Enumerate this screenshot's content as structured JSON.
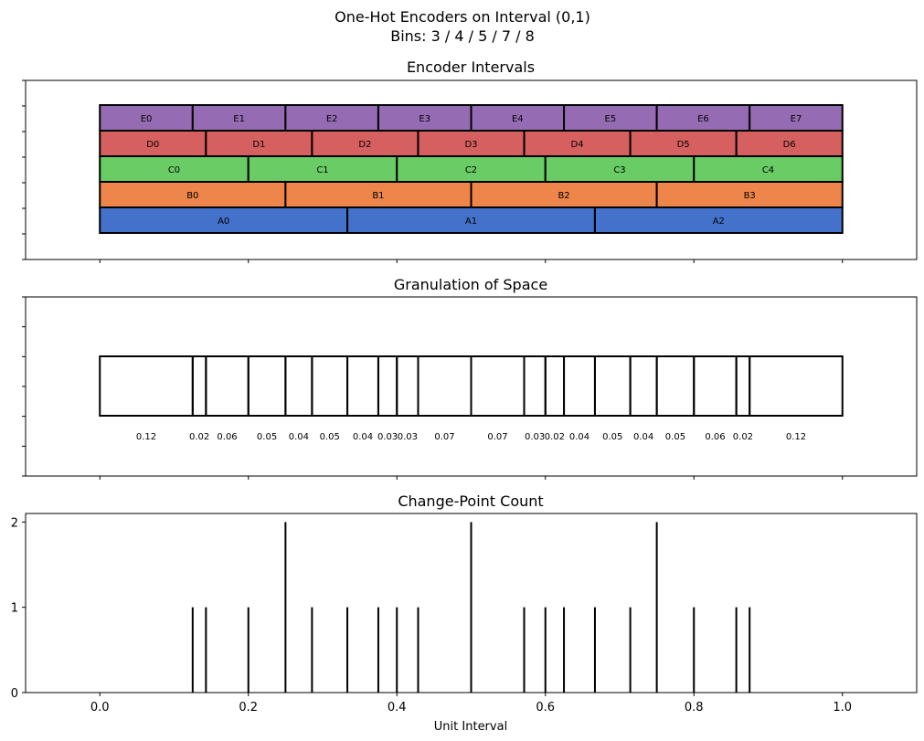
{
  "figure": {
    "suptitle_line1": "One-Hot Encoders on Interval (0,1)",
    "suptitle_line2": "Bins: 3 / 4 / 5 / 7 / 8"
  },
  "colors": {
    "A": "#4472ca",
    "B": "#ee854a",
    "C": "#6acc64",
    "D": "#d65f5f",
    "E": "#956cb4",
    "stroke": "#000000"
  },
  "chart_data": [
    {
      "type": "bar",
      "title": "Encoder Intervals",
      "xlim": [
        -0.1,
        1.1
      ],
      "encoders": [
        {
          "name": "A",
          "bins": 3,
          "labels": [
            "A0",
            "A1",
            "A2"
          ]
        },
        {
          "name": "B",
          "bins": 4,
          "labels": [
            "B0",
            "B1",
            "B2",
            "B3"
          ]
        },
        {
          "name": "C",
          "bins": 5,
          "labels": [
            "C0",
            "C1",
            "C2",
            "C3",
            "C4"
          ]
        },
        {
          "name": "D",
          "bins": 7,
          "labels": [
            "D0",
            "D1",
            "D2",
            "D3",
            "D4",
            "D5",
            "D6"
          ]
        },
        {
          "name": "E",
          "bins": 8,
          "labels": [
            "E0",
            "E1",
            "E2",
            "E3",
            "E4",
            "E5",
            "E6",
            "E7"
          ]
        }
      ]
    },
    {
      "type": "bar",
      "title": "Granulation of Space",
      "xlim": [
        -0.1,
        1.1
      ],
      "boundaries": [
        0,
        0.125,
        0.1429,
        0.2,
        0.25,
        0.2857,
        0.3333,
        0.375,
        0.4,
        0.4286,
        0.5,
        0.5714,
        0.6,
        0.625,
        0.6667,
        0.7143,
        0.75,
        0.8,
        0.8571,
        0.875,
        1.0
      ],
      "widths": [
        "0.12",
        "0.02",
        "0.06",
        "0.05",
        "0.04",
        "0.05",
        "0.04",
        "0.03",
        "0.03",
        "0.07",
        "0.07",
        "0.03",
        "0.02",
        "0.04",
        "0.05",
        "0.04",
        "0.05",
        "0.06",
        "0.02",
        "0.12"
      ]
    },
    {
      "type": "bar",
      "title": "Change-Point Count",
      "xlabel": "Unit Interval",
      "xlim": [
        -0.1,
        1.1
      ],
      "ylim": [
        0,
        2.1
      ],
      "yticks": [
        "0",
        "1",
        "2"
      ],
      "xticks": [
        "0.0",
        "0.2",
        "0.4",
        "0.6",
        "0.8",
        "1.0"
      ],
      "x": [
        0.125,
        0.1429,
        0.2,
        0.25,
        0.2857,
        0.3333,
        0.375,
        0.4,
        0.4286,
        0.5,
        0.5714,
        0.6,
        0.625,
        0.6667,
        0.7143,
        0.75,
        0.8,
        0.8571,
        0.875
      ],
      "values": [
        1,
        1,
        1,
        2,
        1,
        1,
        1,
        1,
        1,
        2,
        1,
        1,
        1,
        1,
        1,
        2,
        1,
        1,
        1
      ]
    }
  ]
}
